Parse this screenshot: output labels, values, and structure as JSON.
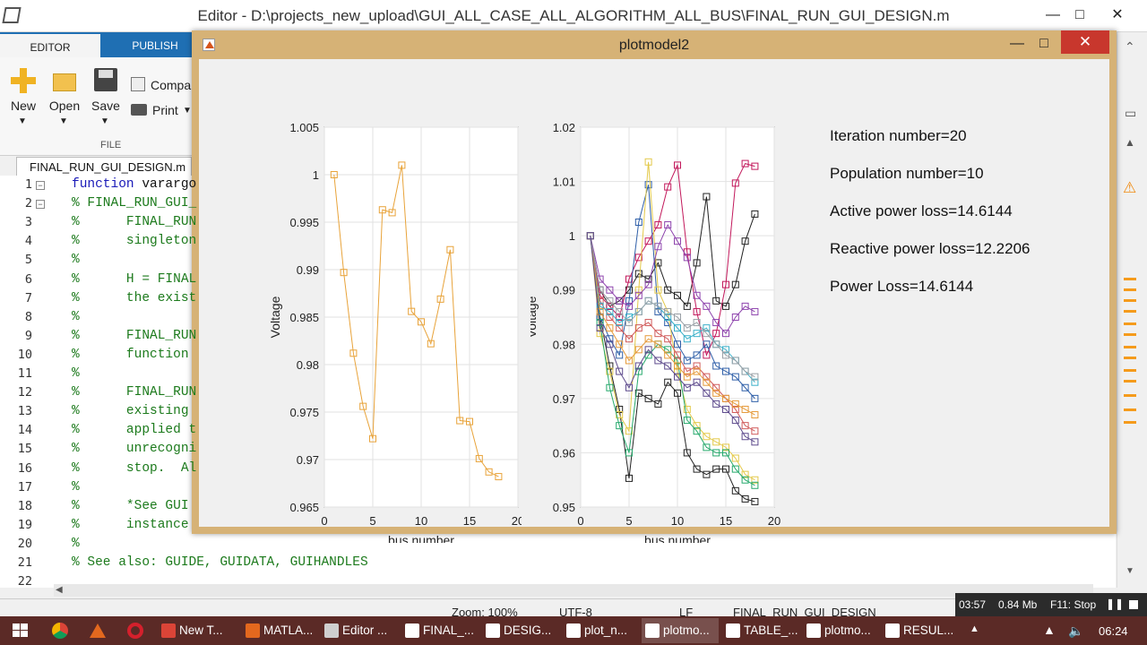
{
  "editor": {
    "title": "Editor - D:\\projects_new_upload\\GUI_ALL_CASE_ALL_ALGORITHM_ALL_BUS\\FINAL_RUN_GUI_DESIGN.m",
    "tabs": [
      "EDITOR",
      "PUBLISH"
    ],
    "ribbon": {
      "new_label": "New",
      "open_label": "Open",
      "save_label": "Save",
      "compare_label": "Compa",
      "print_label": "Print",
      "file_group_label": "FILE"
    },
    "file_tab": "FINAL_RUN_GUI_DESIGN.m",
    "code_lines": [
      {
        "n": "1",
        "text": "function varargo"
      },
      {
        "n": "2",
        "text": "% FINAL_RUN_GUI_"
      },
      {
        "n": "3",
        "text": "%      FINAL_RUN"
      },
      {
        "n": "4",
        "text": "%      singleton"
      },
      {
        "n": "5",
        "text": "%"
      },
      {
        "n": "6",
        "text": "%      H = FINAL"
      },
      {
        "n": "7",
        "text": "%      the exist"
      },
      {
        "n": "8",
        "text": "%"
      },
      {
        "n": "9",
        "text": "%      FINAL_RUN"
      },
      {
        "n": "10",
        "text": "%      function"
      },
      {
        "n": "11",
        "text": "%"
      },
      {
        "n": "12",
        "text": "%      FINAL_RUN"
      },
      {
        "n": "13",
        "text": "%      existing"
      },
      {
        "n": "14",
        "text": "%      applied t"
      },
      {
        "n": "15",
        "text": "%      unrecogni"
      },
      {
        "n": "16",
        "text": "%      stop.  Al"
      },
      {
        "n": "17",
        "text": "%"
      },
      {
        "n": "18",
        "text": "%      *See GUI"
      },
      {
        "n": "19",
        "text": "%      instance"
      },
      {
        "n": "20",
        "text": "%"
      },
      {
        "n": "21",
        "text": "% See also: GUIDE, GUIDATA, GUIHANDLES"
      },
      {
        "n": "22",
        "text": ""
      }
    ],
    "status": {
      "zoom": "Zoom: 100%",
      "encoding": "UTF-8",
      "eol": "LF",
      "file": "FINAL_RUN_GUI_DESIGN"
    }
  },
  "recorder": {
    "time": "03:57",
    "size": "0.84 Mb",
    "stop": "F11: Stop"
  },
  "plot_window": {
    "title": "plotmodel2",
    "info_lines": [
      "Iteration number=20",
      "Population number=10",
      "Active power loss=14.6144",
      "Reactive power loss=12.2206",
      "Power Loss=14.6144"
    ]
  },
  "chart_data": [
    {
      "type": "line",
      "xlabel": "bus number",
      "ylabel": "Voltage",
      "xlim": [
        0,
        20
      ],
      "ylim": [
        0.965,
        1.005
      ],
      "xticks": [
        "0",
        "5",
        "10",
        "15",
        "20"
      ],
      "yticks": [
        "0.965",
        "0.97",
        "0.975",
        "0.98",
        "0.985",
        "0.99",
        "0.995",
        "1",
        "1.005"
      ],
      "grid": true,
      "marker": "square",
      "series": [
        {
          "color": "#e8a33a",
          "x": [
            1,
            2,
            3,
            4,
            5,
            6,
            7,
            8,
            9,
            10,
            11,
            12,
            13,
            14,
            15,
            16,
            17,
            18
          ],
          "y": [
            1.0,
            0.9897,
            0.9812,
            0.9756,
            0.9722,
            0.9963,
            0.996,
            1.001,
            0.9856,
            0.9845,
            0.9822,
            0.9869,
            0.9921,
            0.9741,
            0.974,
            0.9701,
            0.9687,
            0.9682
          ]
        }
      ]
    },
    {
      "type": "line",
      "xlabel": "bus number",
      "ylabel": "Voltage",
      "xlim": [
        0,
        20
      ],
      "ylim": [
        0.95,
        1.02
      ],
      "xticks": [
        "0",
        "5",
        "10",
        "15",
        "20"
      ],
      "yticks": [
        "0.95",
        "0.96",
        "0.97",
        "0.98",
        "0.99",
        "1",
        "1.01",
        "1.02"
      ],
      "grid": true,
      "marker": "square",
      "series": [
        {
          "color": "#222222",
          "x": [
            1,
            2,
            3,
            4,
            5,
            6,
            7,
            8,
            9,
            10,
            11,
            12,
            13,
            14,
            15,
            16,
            17,
            18
          ],
          "y": [
            1.0,
            0.985,
            0.976,
            0.968,
            0.9553,
            0.971,
            0.97,
            0.969,
            0.973,
            0.971,
            0.96,
            0.957,
            0.956,
            0.957,
            0.957,
            0.953,
            0.9515,
            0.951
          ]
        },
        {
          "color": "#222222",
          "x": [
            1,
            2,
            3,
            4,
            5,
            6,
            7,
            8,
            9,
            10,
            11,
            12,
            13,
            14,
            15,
            16,
            17,
            18
          ],
          "y": [
            1.0,
            0.99,
            0.987,
            0.988,
            0.99,
            0.993,
            0.992,
            0.995,
            0.99,
            0.989,
            0.987,
            0.995,
            1.0072,
            0.988,
            0.987,
            0.991,
            0.999,
            1.004
          ]
        },
        {
          "color": "#c2185b",
          "x": [
            1,
            2,
            3,
            4,
            5,
            6,
            7,
            8,
            9,
            10,
            11,
            12,
            13,
            14,
            15,
            16,
            17,
            18
          ],
          "y": [
            1.0,
            0.989,
            0.987,
            0.985,
            0.992,
            0.996,
            0.999,
            1.002,
            1.009,
            1.013,
            0.997,
            0.986,
            0.978,
            0.982,
            0.991,
            1.0097,
            1.0133,
            1.0128
          ]
        },
        {
          "color": "#2f5fa8",
          "x": [
            1,
            2,
            3,
            4,
            5,
            6,
            7,
            8,
            9,
            10,
            11,
            12,
            13,
            14,
            15,
            16,
            17,
            18
          ],
          "y": [
            1.0,
            0.985,
            0.981,
            0.978,
            0.988,
            1.0025,
            1.0094,
            0.986,
            0.984,
            0.98,
            0.977,
            0.978,
            0.98,
            0.976,
            0.975,
            0.974,
            0.972,
            0.97
          ]
        },
        {
          "color": "#e3c94a",
          "x": [
            1,
            2,
            3,
            4,
            5,
            6,
            7,
            8,
            9,
            10,
            11,
            12,
            13,
            14,
            15,
            16,
            17,
            18
          ],
          "y": [
            1.0,
            0.982,
            0.975,
            0.967,
            0.964,
            0.99,
            1.0136,
            0.99,
            0.986,
            0.975,
            0.968,
            0.965,
            0.963,
            0.962,
            0.961,
            0.959,
            0.956,
            0.955
          ]
        },
        {
          "color": "#26a96c",
          "x": [
            1,
            2,
            3,
            4,
            5,
            6,
            7,
            8,
            9,
            10,
            11,
            12,
            13,
            14,
            15,
            16,
            17,
            18
          ],
          "y": [
            1.0,
            0.984,
            0.972,
            0.965,
            0.96,
            0.975,
            0.978,
            0.98,
            0.979,
            0.977,
            0.966,
            0.964,
            0.961,
            0.96,
            0.96,
            0.957,
            0.955,
            0.954
          ]
        },
        {
          "color": "#8e44ad",
          "x": [
            1,
            2,
            3,
            4,
            5,
            6,
            7,
            8,
            9,
            10,
            11,
            12,
            13,
            14,
            15,
            16,
            17,
            18
          ],
          "y": [
            1.0,
            0.992,
            0.99,
            0.988,
            0.987,
            0.989,
            0.991,
            0.998,
            1.002,
            0.999,
            0.996,
            0.989,
            0.987,
            0.984,
            0.982,
            0.985,
            0.987,
            0.986
          ]
        },
        {
          "color": "#d05a5a",
          "x": [
            1,
            2,
            3,
            4,
            5,
            6,
            7,
            8,
            9,
            10,
            11,
            12,
            13,
            14,
            15,
            16,
            17,
            18
          ],
          "y": [
            1.0,
            0.988,
            0.985,
            0.983,
            0.981,
            0.983,
            0.984,
            0.982,
            0.981,
            0.978,
            0.975,
            0.976,
            0.974,
            0.972,
            0.97,
            0.968,
            0.965,
            0.964
          ]
        },
        {
          "color": "#3ab0c9",
          "x": [
            1,
            2,
            3,
            4,
            5,
            6,
            7,
            8,
            9,
            10,
            11,
            12,
            13,
            14,
            15,
            16,
            17,
            18
          ],
          "y": [
            1.0,
            0.987,
            0.986,
            0.984,
            0.985,
            0.986,
            0.988,
            0.987,
            0.985,
            0.983,
            0.981,
            0.982,
            0.983,
            0.98,
            0.979,
            0.977,
            0.975,
            0.973
          ]
        },
        {
          "color": "#e59a3a",
          "x": [
            1,
            2,
            3,
            4,
            5,
            6,
            7,
            8,
            9,
            10,
            11,
            12,
            13,
            14,
            15,
            16,
            17,
            18
          ],
          "y": [
            1.0,
            0.986,
            0.983,
            0.98,
            0.977,
            0.979,
            0.981,
            0.98,
            0.978,
            0.976,
            0.974,
            0.975,
            0.973,
            0.971,
            0.97,
            0.969,
            0.968,
            0.967
          ]
        },
        {
          "color": "#9aa0a6",
          "x": [
            1,
            2,
            3,
            4,
            5,
            6,
            7,
            8,
            9,
            10,
            11,
            12,
            13,
            14,
            15,
            16,
            17,
            18
          ],
          "y": [
            1.0,
            0.99,
            0.988,
            0.986,
            0.984,
            0.986,
            0.988,
            0.987,
            0.986,
            0.985,
            0.983,
            0.984,
            0.982,
            0.98,
            0.978,
            0.977,
            0.975,
            0.974
          ]
        },
        {
          "color": "#5d4a8c",
          "x": [
            1,
            2,
            3,
            4,
            5,
            6,
            7,
            8,
            9,
            10,
            11,
            12,
            13,
            14,
            15,
            16,
            17,
            18
          ],
          "y": [
            1.0,
            0.983,
            0.98,
            0.975,
            0.972,
            0.976,
            0.979,
            0.977,
            0.976,
            0.974,
            0.972,
            0.973,
            0.971,
            0.969,
            0.968,
            0.966,
            0.963,
            0.962
          ]
        }
      ]
    }
  ],
  "taskbar": {
    "items": [
      "New T...",
      "MATLA...",
      "Editor ...",
      "FINAL_...",
      "DESIG...",
      "plot_n...",
      "plotmo...",
      "TABLE_...",
      "plotmo...",
      "RESUL..."
    ],
    "clock": "06:24"
  }
}
